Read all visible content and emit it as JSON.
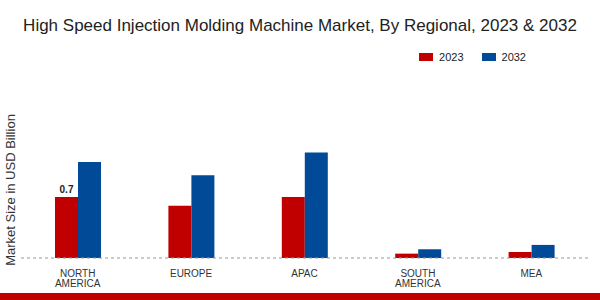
{
  "chart_data": {
    "type": "bar",
    "title": "High Speed Injection Molding Machine Market, By Regional, 2023 & 2032",
    "y_label": "Market Size in USD Billion",
    "categories": [
      "NORTH AMERICA",
      "EUROPE",
      "APAC",
      "SOUTH AMERICA",
      "MEA"
    ],
    "series": [
      {
        "name": "2023",
        "color": "#c00000",
        "values": [
          0.7,
          0.6,
          0.7,
          0.05,
          0.07
        ],
        "value_labels": [
          "0.7",
          null,
          null,
          null,
          null
        ]
      },
      {
        "name": "2032",
        "color": "#004a98",
        "values": [
          1.1,
          0.95,
          1.21,
          0.1,
          0.15
        ]
      }
    ],
    "ylim": [
      0,
      1.8
    ],
    "grid": false,
    "legend": "top-right",
    "tick_labels": "x"
  }
}
